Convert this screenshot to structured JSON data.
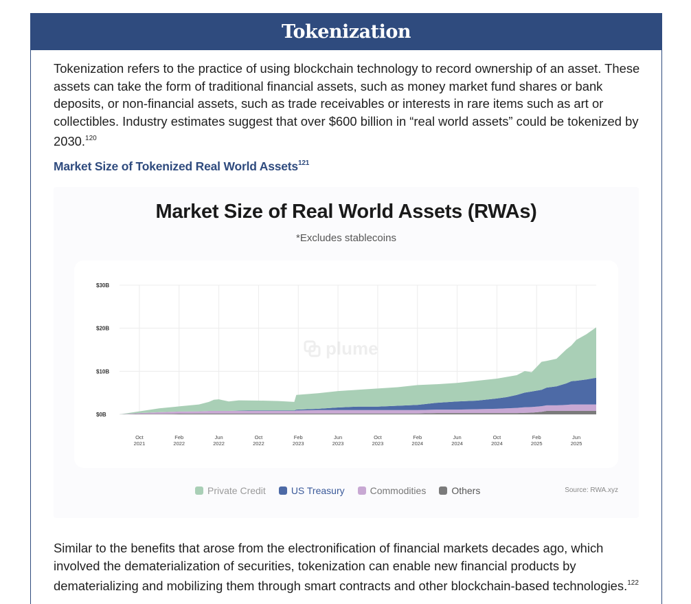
{
  "banner": {
    "title": "Tokenization"
  },
  "intro": {
    "text": "Tokenization refers to the practice of using blockchain technology to record ownership of an asset. These assets can take the form of traditional financial assets, such as money market fund shares or bank deposits, or non-financial assets, such as trade receivables or interests in rare items such as art or collectibles. Industry estimates suggest that over $600 billion in “real world assets” could be tokenized by 2030.",
    "footnote": "120"
  },
  "figure_heading": {
    "text": "Market Size of Tokenized Real World Assets",
    "footnote": "121"
  },
  "chart": {
    "watermark": "plume",
    "source": "Source: RWA.xyz",
    "colors": {
      "private_credit": "#a9cfb6",
      "us_treasury": "#4d6aa6",
      "commodities": "#c8a8d3",
      "others": "#7b7b7b",
      "grid": "#ececec"
    }
  },
  "chart_data": {
    "type": "area",
    "title": "Market Size of Real World Assets (RWAs)",
    "subtitle": "*Excludes stablecoins",
    "xlabel": "",
    "ylabel": "",
    "ylim": [
      0,
      30
    ],
    "stacked": true,
    "grid": true,
    "legend_position": "bottom",
    "y_ticks": [
      "$0B",
      "$10B",
      "$20B",
      "$30B"
    ],
    "y_tick_values": [
      0,
      10,
      20,
      30
    ],
    "x_ticks": [
      {
        "line1": "Oct",
        "line2": "2021",
        "t": 0
      },
      {
        "line1": "Feb",
        "line2": "2022",
        "t": 4
      },
      {
        "line1": "Jun",
        "line2": "2022",
        "t": 8
      },
      {
        "line1": "Oct",
        "line2": "2022",
        "t": 12
      },
      {
        "line1": "Feb",
        "line2": "2023",
        "t": 16
      },
      {
        "line1": "Jun",
        "line2": "2023",
        "t": 20
      },
      {
        "line1": "Oct",
        "line2": "2023",
        "t": 24
      },
      {
        "line1": "Feb",
        "line2": "2024",
        "t": 28
      },
      {
        "line1": "Jun",
        "line2": "2024",
        "t": 32
      },
      {
        "line1": "Oct",
        "line2": "2024",
        "t": 36
      },
      {
        "line1": "Feb",
        "line2": "2025",
        "t": 40
      },
      {
        "line1": "Jun",
        "line2": "2025",
        "t": 44
      }
    ],
    "x": [
      -2,
      0,
      2,
      4,
      6,
      7,
      7.5,
      8,
      9,
      10,
      12,
      14,
      15.6,
      15.8,
      18,
      20,
      22,
      24,
      26,
      28,
      30,
      32,
      34,
      36,
      37,
      38,
      38.8,
      39.5,
      40.5,
      41,
      42,
      43,
      43.5,
      44,
      45,
      46
    ],
    "series": [
      {
        "name": "Others",
        "values": [
          0,
          0.1,
          0.1,
          0.15,
          0.2,
          0.2,
          0.2,
          0.2,
          0.2,
          0.2,
          0.2,
          0.2,
          0.2,
          0.2,
          0.2,
          0.2,
          0.2,
          0.2,
          0.2,
          0.2,
          0.3,
          0.3,
          0.3,
          0.3,
          0.3,
          0.3,
          0.35,
          0.4,
          0.6,
          0.8,
          0.8,
          0.8,
          0.8,
          0.8,
          0.8,
          0.8
        ]
      },
      {
        "name": "Commodities",
        "values": [
          0,
          0.2,
          0.4,
          0.5,
          0.5,
          0.6,
          0.6,
          0.6,
          0.6,
          0.6,
          0.6,
          0.6,
          0.6,
          0.7,
          0.8,
          0.8,
          0.8,
          0.8,
          0.8,
          0.8,
          0.8,
          0.8,
          0.9,
          1.0,
          1.1,
          1.2,
          1.3,
          1.3,
          1.3,
          1.3,
          1.3,
          1.4,
          1.5,
          1.5,
          1.5,
          1.5
        ]
      },
      {
        "name": "US Treasury",
        "values": [
          0,
          0,
          0,
          0,
          0,
          0,
          0,
          0,
          0,
          0.05,
          0.1,
          0.1,
          0.1,
          0.2,
          0.3,
          0.6,
          0.8,
          0.8,
          1.0,
          1.2,
          1.6,
          1.9,
          2.0,
          2.4,
          2.6,
          3.0,
          3.4,
          3.6,
          3.8,
          4.1,
          4.4,
          5.0,
          5.4,
          5.5,
          5.8,
          6.2
        ]
      },
      {
        "name": "Private Credit",
        "values": [
          0,
          0.4,
          0.9,
          1.2,
          1.6,
          2.1,
          2.6,
          2.7,
          2.2,
          2.4,
          2.3,
          2.2,
          2.0,
          3.4,
          3.6,
          3.8,
          3.9,
          4.2,
          4.3,
          4.6,
          4.3,
          4.3,
          4.6,
          4.6,
          4.7,
          4.6,
          5.0,
          4.5,
          6.5,
          6.2,
          6.4,
          7.9,
          8.3,
          9.5,
          10.5,
          11.7
        ]
      }
    ],
    "legend": [
      {
        "name": "Private Credit",
        "color_key": "private_credit",
        "text_color": "#9a9a9a"
      },
      {
        "name": "US Treasury",
        "color_key": "us_treasury",
        "text_color": "#3b5a9a"
      },
      {
        "name": "Commodities",
        "color_key": "commodities",
        "text_color": "#777777"
      },
      {
        "name": "Others",
        "color_key": "others",
        "text_color": "#555555"
      }
    ]
  },
  "closing": {
    "text": "Similar to the benefits that arose from the electronification of financial markets decades ago, which involved the dematerialization of securities, tokenization can enable new financial products by dematerializing and mobilizing them through smart contracts and other blockchain-based technologies.",
    "footnote": "122"
  }
}
